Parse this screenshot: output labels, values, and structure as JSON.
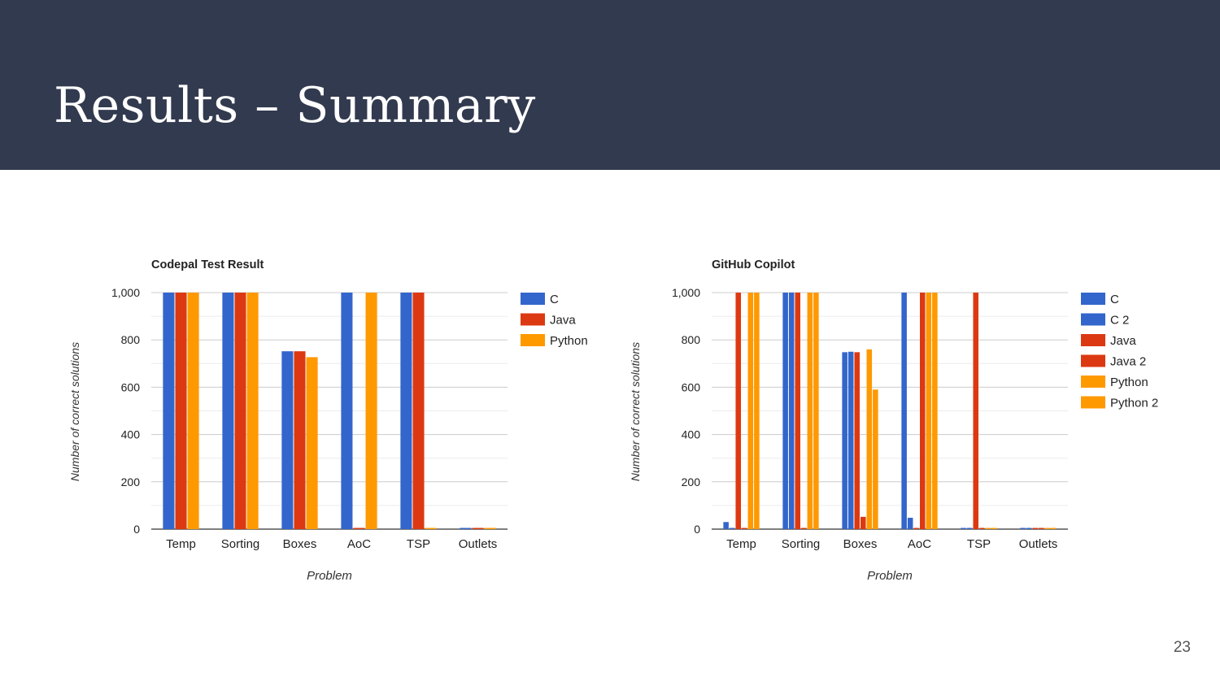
{
  "slide": {
    "title": "Results – Summary",
    "page_number": "23",
    "header_color": "#323a4f"
  },
  "chart_data": [
    {
      "type": "bar",
      "title": "Codepal Test Result",
      "xlabel": "Problem",
      "ylabel": "Number of correct solutions",
      "ylim": [
        0,
        1000
      ],
      "yticks": [
        0,
        200,
        400,
        600,
        800,
        1000
      ],
      "ytick_labels": [
        "0",
        "200",
        "400",
        "600",
        "800",
        "1,000"
      ],
      "grid": true,
      "legend_position": "right",
      "categories": [
        "Temp",
        "Sorting",
        "Boxes",
        "AoC",
        "TSP",
        "Outlets"
      ],
      "series": [
        {
          "name": "C",
          "color": "#3366cc",
          "values": [
            1000,
            1000,
            752,
            1000,
            1000,
            0
          ]
        },
        {
          "name": "Java",
          "color": "#dc3912",
          "values": [
            1000,
            1000,
            752,
            0,
            1000,
            0
          ]
        },
        {
          "name": "Python",
          "color": "#ff9900",
          "values": [
            1000,
            1000,
            727,
            1000,
            0,
            0
          ]
        }
      ]
    },
    {
      "type": "bar",
      "title": "GitHub Copilot",
      "xlabel": "Problem",
      "ylabel": "Number of correct solutions",
      "ylim": [
        0,
        1000
      ],
      "yticks": [
        0,
        200,
        400,
        600,
        800,
        1000
      ],
      "ytick_labels": [
        "0",
        "200",
        "400",
        "600",
        "800",
        "1,000"
      ],
      "grid": true,
      "legend_position": "right",
      "categories": [
        "Temp",
        "Sorting",
        "Boxes",
        "AoC",
        "TSP",
        "Outlets"
      ],
      "series": [
        {
          "name": "C",
          "color": "#3366cc",
          "values": [
            30,
            1000,
            748,
            1000,
            0,
            0
          ]
        },
        {
          "name": "C 2",
          "color": "#3366cc",
          "values": [
            0,
            1000,
            750,
            48,
            0,
            0
          ]
        },
        {
          "name": "Java",
          "color": "#dc3912",
          "values": [
            1000,
            1000,
            748,
            0,
            1000,
            0
          ]
        },
        {
          "name": "Java 2",
          "color": "#dc3912",
          "values": [
            0,
            0,
            52,
            1000,
            0,
            0
          ]
        },
        {
          "name": "Python",
          "color": "#ff9900",
          "values": [
            1000,
            1000,
            760,
            1000,
            0,
            0
          ]
        },
        {
          "name": "Python 2",
          "color": "#ff9900",
          "values": [
            1000,
            1000,
            590,
            1000,
            0,
            0
          ]
        }
      ]
    }
  ]
}
